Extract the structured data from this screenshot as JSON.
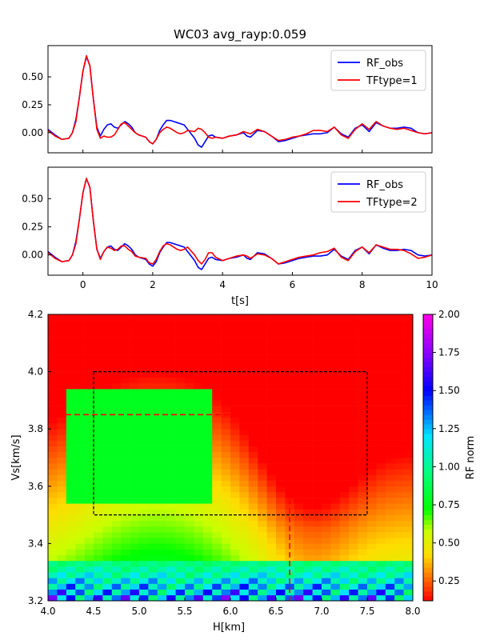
{
  "title": "WC03 avg_rayp:0.059",
  "chart_data": [
    {
      "type": "line",
      "xlim": [
        -1,
        10
      ],
      "ylim": [
        -0.18,
        0.78
      ],
      "xticks": [
        0,
        2,
        4,
        6,
        8,
        10
      ],
      "yticks": [
        -0.0,
        0.25,
        0.5
      ],
      "ytick_labels": [
        "0.00",
        "0.25",
        "0.50"
      ],
      "grid": false,
      "legend": "top-right",
      "series": [
        {
          "name": "RF_obs",
          "color": "#0000ff",
          "x": [
            -1.0,
            -0.8,
            -0.6,
            -0.4,
            -0.3,
            -0.2,
            -0.1,
            0.0,
            0.1,
            0.2,
            0.3,
            0.4,
            0.5,
            0.6,
            0.7,
            0.8,
            0.9,
            1.0,
            1.1,
            1.2,
            1.3,
            1.4,
            1.5,
            1.6,
            1.8,
            1.9,
            2.0,
            2.1,
            2.2,
            2.3,
            2.4,
            2.5,
            2.6,
            2.7,
            2.8,
            2.9,
            3.0,
            3.2,
            3.3,
            3.4,
            3.5,
            3.6,
            3.7,
            3.8,
            4.0,
            4.2,
            4.4,
            4.6,
            4.7,
            4.8,
            5.0,
            5.2,
            5.4,
            5.6,
            5.8,
            6.0,
            6.2,
            6.4,
            6.6,
            6.8,
            7.0,
            7.2,
            7.4,
            7.6,
            7.8,
            8.0,
            8.2,
            8.4,
            8.6,
            8.8,
            9.0,
            9.2,
            9.4,
            9.6,
            9.8,
            10.0
          ],
          "y": [
            0.03,
            -0.02,
            -0.06,
            -0.05,
            0.0,
            0.12,
            0.32,
            0.55,
            0.68,
            0.6,
            0.3,
            0.05,
            -0.03,
            0.03,
            0.07,
            0.08,
            0.05,
            0.04,
            0.07,
            0.1,
            0.08,
            0.05,
            0.0,
            -0.02,
            -0.04,
            -0.08,
            -0.1,
            -0.06,
            0.02,
            0.07,
            0.11,
            0.11,
            0.1,
            0.09,
            0.08,
            0.07,
            0.03,
            -0.05,
            -0.11,
            -0.13,
            -0.08,
            -0.03,
            -0.02,
            -0.04,
            -0.05,
            -0.03,
            -0.02,
            0.0,
            -0.03,
            -0.04,
            0.02,
            0.01,
            -0.03,
            -0.08,
            -0.07,
            -0.05,
            -0.03,
            -0.02,
            -0.01,
            -0.01,
            0.0,
            0.05,
            -0.01,
            -0.04,
            0.04,
            0.07,
            0.01,
            0.09,
            0.06,
            0.04,
            0.04,
            0.05,
            0.04,
            0.0,
            -0.01,
            0.0
          ]
        },
        {
          "name": "TFtype=1",
          "color": "#ff0000",
          "x": [
            -1.0,
            -0.8,
            -0.6,
            -0.4,
            -0.3,
            -0.2,
            -0.1,
            0.0,
            0.1,
            0.2,
            0.3,
            0.4,
            0.5,
            0.6,
            0.7,
            0.8,
            0.9,
            1.0,
            1.1,
            1.2,
            1.3,
            1.4,
            1.5,
            1.6,
            1.8,
            1.9,
            2.0,
            2.1,
            2.2,
            2.3,
            2.4,
            2.5,
            2.6,
            2.7,
            2.8,
            2.9,
            3.0,
            3.2,
            3.3,
            3.4,
            3.5,
            3.6,
            3.7,
            3.8,
            4.0,
            4.2,
            4.4,
            4.6,
            4.7,
            4.8,
            5.0,
            5.2,
            5.4,
            5.6,
            5.8,
            6.0,
            6.2,
            6.4,
            6.6,
            6.8,
            7.0,
            7.2,
            7.4,
            7.6,
            7.8,
            8.0,
            8.2,
            8.4,
            8.6,
            8.8,
            9.0,
            9.2,
            9.4,
            9.6,
            9.8,
            10.0
          ],
          "y": [
            0.02,
            -0.03,
            -0.06,
            -0.05,
            0.0,
            0.1,
            0.32,
            0.55,
            0.69,
            0.6,
            0.3,
            0.03,
            -0.05,
            -0.03,
            -0.04,
            -0.04,
            -0.02,
            0.03,
            0.08,
            0.09,
            0.06,
            0.03,
            0.0,
            -0.02,
            -0.04,
            -0.08,
            -0.1,
            -0.06,
            0.0,
            0.03,
            0.05,
            0.04,
            0.02,
            0.0,
            -0.01,
            0.0,
            0.02,
            0.01,
            0.04,
            0.03,
            0.0,
            -0.04,
            -0.05,
            -0.04,
            -0.05,
            -0.03,
            -0.02,
            0.01,
            0.0,
            -0.01,
            0.03,
            0.01,
            -0.03,
            -0.07,
            -0.06,
            -0.04,
            -0.03,
            -0.01,
            0.02,
            0.02,
            0.01,
            0.05,
            -0.02,
            -0.05,
            0.03,
            0.08,
            0.03,
            0.1,
            0.06,
            0.04,
            0.03,
            0.04,
            0.02,
            0.0,
            -0.01,
            0.0
          ]
        }
      ]
    },
    {
      "type": "line",
      "xlim": [
        -1,
        10
      ],
      "ylim": [
        -0.18,
        0.78
      ],
      "xlabel": "t[s]",
      "xticks": [
        0,
        2,
        4,
        6,
        8,
        10
      ],
      "xtick_labels": [
        "0",
        "2",
        "4",
        "6",
        "8",
        "10"
      ],
      "yticks": [
        -0.0,
        0.25,
        0.5
      ],
      "ytick_labels": [
        "0.00",
        "0.25",
        "0.50"
      ],
      "grid": false,
      "legend": "top-right",
      "series": [
        {
          "name": "RF_obs",
          "color": "#0000ff",
          "x": [
            -1.0,
            -0.8,
            -0.6,
            -0.4,
            -0.3,
            -0.2,
            -0.1,
            0.0,
            0.1,
            0.2,
            0.3,
            0.4,
            0.5,
            0.6,
            0.7,
            0.8,
            0.9,
            1.0,
            1.1,
            1.2,
            1.3,
            1.4,
            1.5,
            1.6,
            1.8,
            1.9,
            2.0,
            2.1,
            2.2,
            2.3,
            2.4,
            2.5,
            2.6,
            2.7,
            2.8,
            2.9,
            3.0,
            3.2,
            3.3,
            3.4,
            3.5,
            3.6,
            3.7,
            3.8,
            4.0,
            4.2,
            4.4,
            4.6,
            4.7,
            4.8,
            5.0,
            5.2,
            5.4,
            5.6,
            5.8,
            6.0,
            6.2,
            6.4,
            6.6,
            6.8,
            7.0,
            7.2,
            7.4,
            7.6,
            7.8,
            8.0,
            8.2,
            8.4,
            8.6,
            8.8,
            9.0,
            9.2,
            9.4,
            9.6,
            9.8,
            10.0
          ],
          "y": [
            0.03,
            -0.02,
            -0.06,
            -0.05,
            0.0,
            0.12,
            0.32,
            0.55,
            0.68,
            0.6,
            0.3,
            0.05,
            -0.03,
            0.03,
            0.07,
            0.08,
            0.05,
            0.04,
            0.07,
            0.1,
            0.08,
            0.05,
            0.0,
            -0.02,
            -0.04,
            -0.08,
            -0.1,
            -0.06,
            0.02,
            0.07,
            0.11,
            0.11,
            0.1,
            0.09,
            0.08,
            0.07,
            0.03,
            -0.05,
            -0.11,
            -0.13,
            -0.08,
            -0.03,
            -0.02,
            -0.04,
            -0.05,
            -0.03,
            -0.02,
            0.0,
            -0.03,
            -0.04,
            0.02,
            0.01,
            -0.03,
            -0.08,
            -0.07,
            -0.05,
            -0.03,
            -0.02,
            -0.01,
            -0.01,
            0.0,
            0.05,
            -0.01,
            -0.04,
            0.04,
            0.07,
            0.01,
            0.09,
            0.06,
            0.04,
            0.04,
            0.05,
            0.04,
            0.0,
            -0.01,
            0.0
          ]
        },
        {
          "name": "TFtype=2",
          "color": "#ff0000",
          "x": [
            -1.0,
            -0.8,
            -0.6,
            -0.4,
            -0.3,
            -0.2,
            -0.1,
            0.0,
            0.1,
            0.2,
            0.3,
            0.4,
            0.5,
            0.6,
            0.7,
            0.8,
            0.9,
            1.0,
            1.1,
            1.2,
            1.3,
            1.4,
            1.5,
            1.6,
            1.8,
            1.9,
            2.0,
            2.1,
            2.2,
            2.3,
            2.4,
            2.5,
            2.6,
            2.7,
            2.8,
            2.9,
            3.0,
            3.2,
            3.3,
            3.4,
            3.5,
            3.6,
            3.7,
            3.8,
            4.0,
            4.2,
            4.4,
            4.6,
            4.7,
            4.8,
            5.0,
            5.2,
            5.4,
            5.6,
            5.8,
            6.0,
            6.2,
            6.4,
            6.6,
            6.8,
            7.0,
            7.2,
            7.4,
            7.6,
            7.8,
            8.0,
            8.2,
            8.4,
            8.6,
            8.8,
            9.0,
            9.2,
            9.4,
            9.6,
            9.8,
            10.0
          ],
          "y": [
            0.02,
            -0.03,
            -0.06,
            -0.05,
            0.0,
            0.1,
            0.32,
            0.55,
            0.68,
            0.6,
            0.3,
            0.05,
            -0.04,
            0.03,
            0.07,
            0.06,
            0.04,
            0.05,
            0.08,
            0.08,
            0.05,
            0.03,
            -0.01,
            -0.02,
            -0.03,
            -0.07,
            -0.08,
            -0.04,
            0.03,
            0.08,
            0.1,
            0.09,
            0.07,
            0.05,
            0.04,
            0.05,
            0.07,
            0.0,
            -0.05,
            -0.08,
            -0.04,
            0.02,
            0.02,
            -0.02,
            -0.05,
            -0.03,
            -0.01,
            0.0,
            -0.01,
            -0.03,
            0.01,
            0.0,
            -0.03,
            -0.08,
            -0.06,
            -0.04,
            -0.02,
            -0.01,
            0.0,
            0.02,
            0.03,
            0.06,
            -0.02,
            -0.05,
            0.03,
            0.07,
            0.02,
            0.09,
            0.07,
            0.05,
            0.05,
            0.04,
            0.01,
            -0.03,
            -0.02,
            0.0
          ]
        }
      ]
    },
    {
      "type": "heatmap",
      "xlabel": "H[km]",
      "ylabel": "Vs[km/s]",
      "xlim": [
        4.0,
        8.0
      ],
      "ylim": [
        3.2,
        4.2
      ],
      "xticks": [
        4.0,
        4.5,
        5.0,
        5.5,
        6.0,
        6.5,
        7.0,
        7.5,
        8.0
      ],
      "xtick_labels": [
        "4.0",
        "4.5",
        "5.0",
        "5.5",
        "6.0",
        "6.5",
        "7.0",
        "7.5",
        "8.0"
      ],
      "yticks": [
        3.2,
        3.4,
        3.6,
        3.8,
        4.0,
        4.2
      ],
      "ytick_labels": [
        "3.2",
        "3.4",
        "3.6",
        "3.8",
        "4.0",
        "4.2"
      ],
      "colorbar_label": "RF norm",
      "colorbar_range": [
        0.12,
        2.0
      ],
      "colorbar_ticks": [
        0.25,
        0.5,
        0.75,
        1.0,
        1.25,
        1.5,
        1.75,
        2.0
      ],
      "colorbar_tick_labels": [
        "0.25",
        "0.50",
        "0.75",
        "1.00",
        "1.25",
        "1.50",
        "1.75",
        "2.00"
      ],
      "best_fit": {
        "H": 6.65,
        "Vs": 3.85
      },
      "search_box": {
        "H": [
          4.5,
          7.5
        ],
        "Vs": [
          3.5,
          4.0
        ]
      },
      "grid": false
    }
  ]
}
